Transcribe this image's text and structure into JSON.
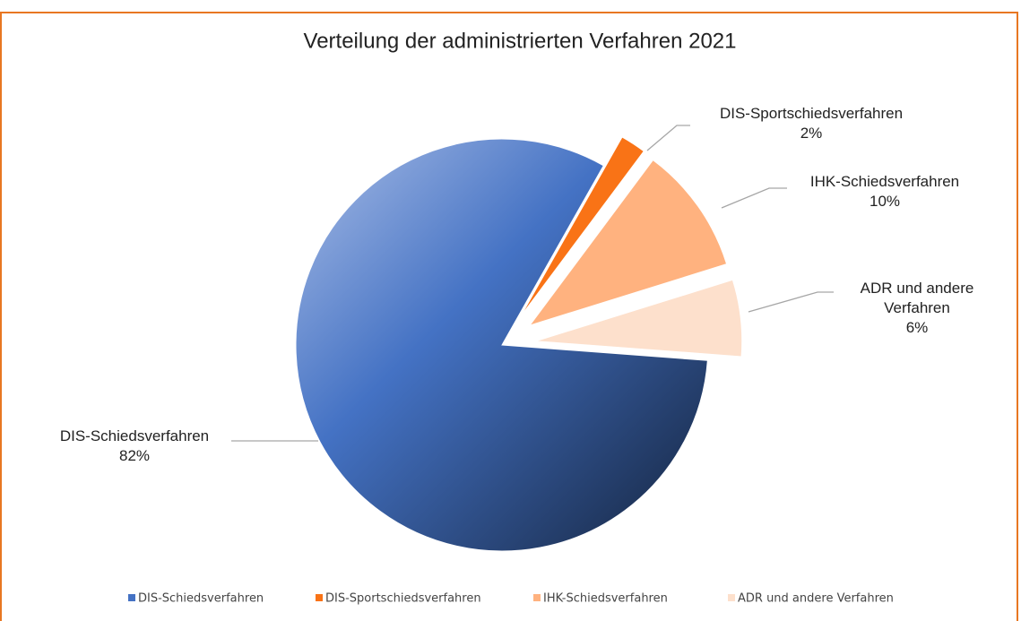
{
  "chart_data": {
    "type": "pie",
    "title": "Verteilung der administrierten Verfahren 2021",
    "categories": [
      "DIS-Schiedsverfahren",
      "DIS-Sportschiedsverfahren",
      "IHK-Schiedsverfahren",
      "ADR und andere Verfahren"
    ],
    "values": [
      82,
      2,
      10,
      6
    ],
    "value_labels": [
      "82%",
      "2%",
      "10%",
      "6%"
    ],
    "colors": [
      "#4472c4",
      "#f97316",
      "#ffb27f",
      "#fde0cc"
    ],
    "legend": "bottom"
  }
}
